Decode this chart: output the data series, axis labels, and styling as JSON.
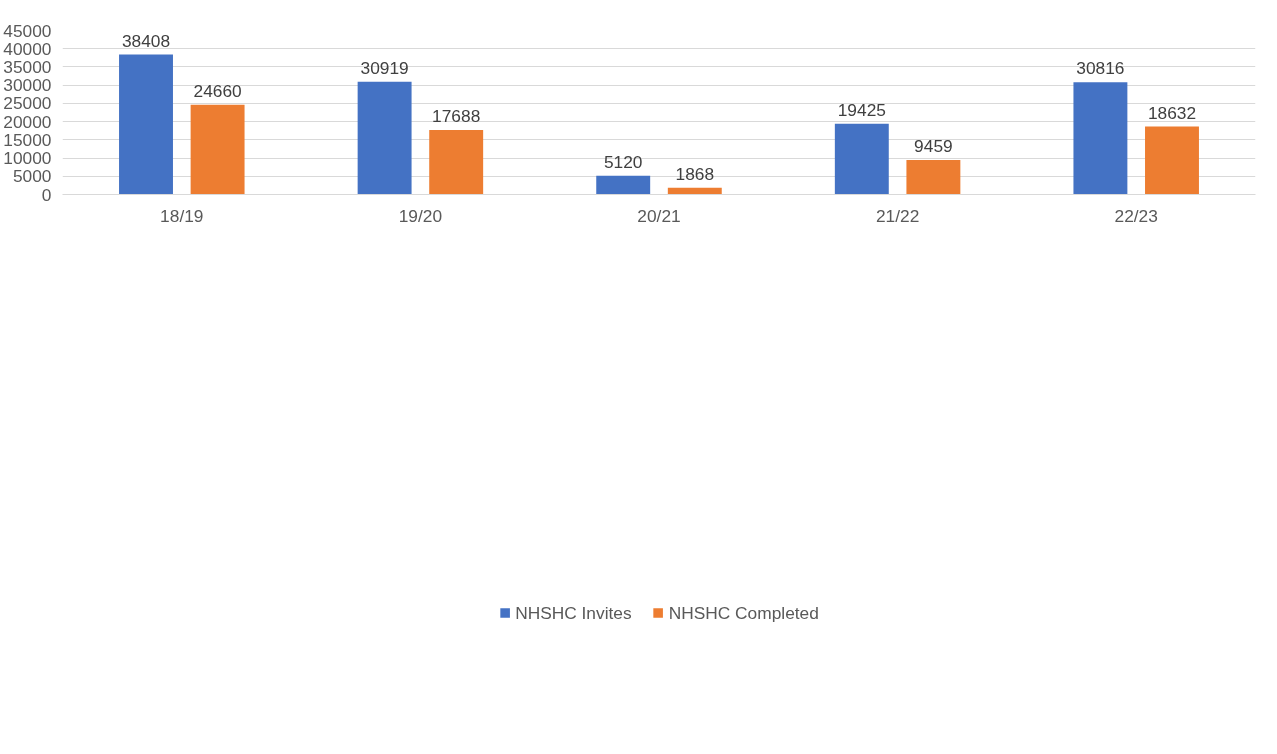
{
  "chart_data": {
    "type": "bar",
    "categories": [
      "18/19",
      "19/20",
      "20/21",
      "21/22",
      "22/23"
    ],
    "series": [
      {
        "name": "NHSHC Invites",
        "color": "#4472c4",
        "values": [
          38408,
          30919,
          5120,
          19425,
          30816
        ]
      },
      {
        "name": "NHSHC Completed",
        "color": "#ed7d31",
        "values": [
          24660,
          17688,
          1868,
          9459,
          18632
        ]
      }
    ],
    "ylim": [
      0,
      45000
    ],
    "yticks": [
      0,
      5000,
      10000,
      15000,
      20000,
      25000,
      30000,
      35000,
      40000,
      45000
    ],
    "grid": "y",
    "legend": "bottom",
    "data_labels": true
  }
}
